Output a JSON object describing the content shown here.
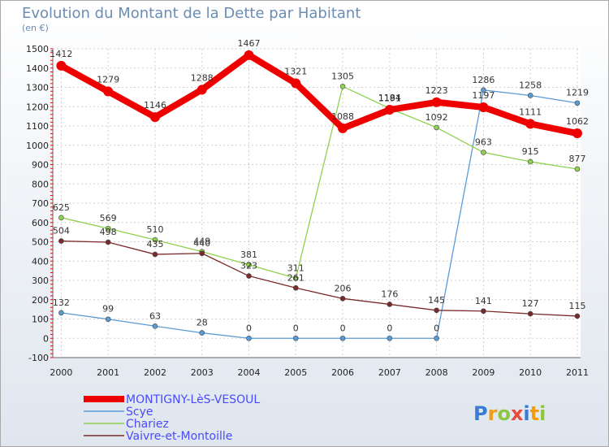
{
  "chart_data": {
    "type": "line",
    "title": "Evolution du Montant de la Dette par Habitant",
    "subtitle": "(en €)",
    "xlabel": "",
    "ylabel": "",
    "ylim": [
      -100,
      1500
    ],
    "yticks": [
      -100,
      0,
      100,
      200,
      300,
      400,
      500,
      600,
      700,
      800,
      900,
      1000,
      1100,
      1200,
      1300,
      1400,
      1500
    ],
    "x": [
      2000,
      2001,
      2002,
      2003,
      2004,
      2005,
      2006,
      2007,
      2008,
      2009,
      2010,
      2011
    ],
    "grid": true,
    "legend_position": "bottom-left",
    "series": [
      {
        "name": "MONTIGNY-LèS-VESOUL",
        "color": "#ee0000",
        "values": [
          1412,
          1279,
          1146,
          1288,
          1467,
          1321,
          1088,
          1184,
          1223,
          1197,
          1111,
          1062
        ]
      },
      {
        "name": "Scye",
        "color": "#5b9bd5",
        "values": [
          132,
          99,
          63,
          28,
          0,
          0,
          0,
          0,
          0,
          1286,
          1258,
          1219
        ]
      },
      {
        "name": "Chariez",
        "color": "#8fd14f",
        "values": [
          625,
          569,
          510,
          449,
          381,
          311,
          1305,
          1191,
          1092,
          963,
          915,
          877
        ]
      },
      {
        "name": "Vaivre-et-Montoille",
        "color": "#7a2a2a",
        "values": [
          504,
          498,
          435,
          440,
          323,
          261,
          206,
          176,
          145,
          141,
          127,
          115
        ]
      }
    ]
  },
  "logo": {
    "letters": [
      "P",
      "r",
      "o",
      "x",
      "i",
      "t",
      "i"
    ],
    "colors": [
      "#3a7bd5",
      "#f39c12",
      "#8dc63f",
      "#e74c3c",
      "#3a7bd5",
      "#f39c12",
      "#8dc63f"
    ]
  }
}
